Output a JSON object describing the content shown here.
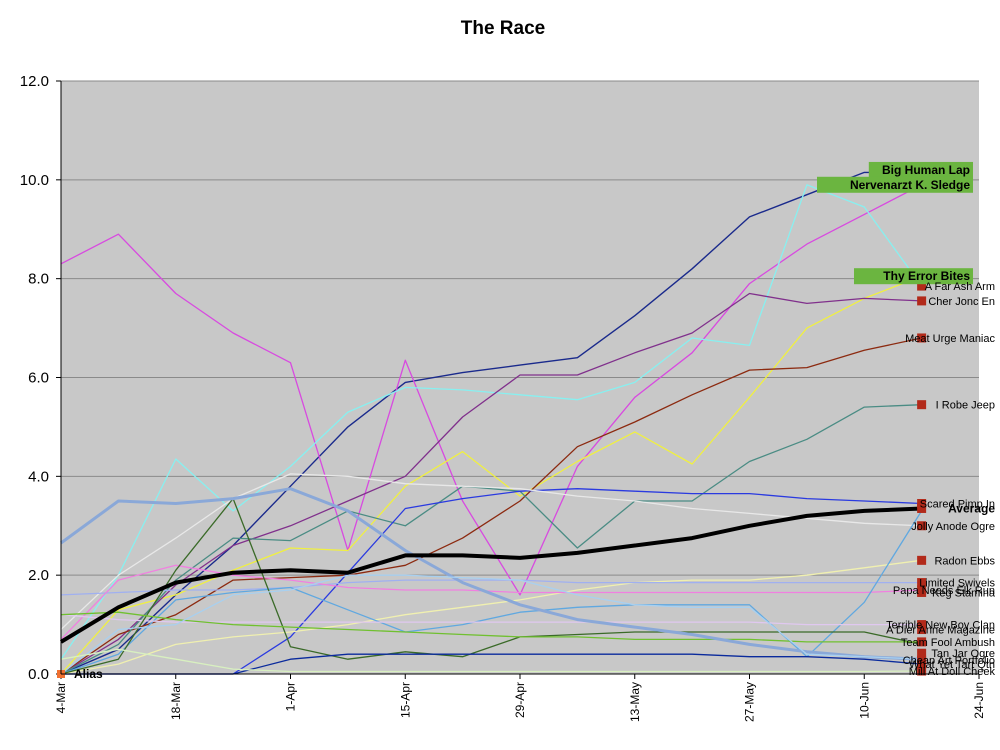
{
  "chart_data": {
    "type": "line",
    "title": "The Race",
    "xlabel": "",
    "ylabel": "",
    "ylim": [
      0,
      12
    ],
    "y_ticks": [
      "0.0",
      "2.0",
      "4.0",
      "6.0",
      "8.0",
      "10.0",
      "12.0"
    ],
    "x_ticks": [
      "4-Mar",
      "18-Mar",
      "1-Apr",
      "15-Apr",
      "29-Apr",
      "13-May",
      "27-May",
      "10-Jun",
      "24-Jun"
    ],
    "x_dates": [
      "4-Mar",
      "11-Mar",
      "18-Mar",
      "25-Mar",
      "1-Apr",
      "8-Apr",
      "15-Apr",
      "22-Apr",
      "29-Apr",
      "6-May",
      "13-May",
      "20-May",
      "27-May",
      "3-Jun",
      "10-Jun",
      "17-Jun"
    ],
    "grid": true,
    "background": "#c8c8c8",
    "series": [
      {
        "name": "Big Human Lap",
        "color": "#1a2a8c",
        "width": 1.4,
        "label_style": "badge",
        "label_y": 10.2,
        "values": [
          0,
          0.5,
          1.6,
          2.6,
          3.8,
          5.0,
          5.9,
          6.1,
          6.25,
          6.4,
          7.25,
          8.2,
          9.25,
          9.7,
          10.15,
          10.15
        ]
      },
      {
        "name": "Nervenarzt K. Sledge",
        "color": "#d84ae0",
        "width": 1.3,
        "label_style": "badge",
        "label_y": 9.9,
        "values": [
          8.3,
          8.9,
          7.7,
          6.9,
          6.3,
          2.5,
          6.35,
          3.5,
          1.6,
          4.2,
          5.6,
          6.5,
          7.9,
          8.7,
          9.3,
          9.9
        ]
      },
      {
        "name": "Thy Error Bites",
        "color": "#f0f040",
        "width": 1.3,
        "label_style": "badge",
        "label_y": 8.05,
        "values": [
          0,
          1.3,
          1.6,
          2.1,
          2.55,
          2.5,
          3.8,
          4.5,
          3.6,
          4.3,
          4.9,
          4.25,
          5.6,
          7.0,
          7.6,
          8.05
        ]
      },
      {
        "name": "A Far Ash Arm",
        "color": "#88f0f0",
        "width": 1.3,
        "label_style": "plain",
        "label_y": 7.85,
        "values": [
          0.3,
          2.0,
          4.35,
          3.3,
          4.2,
          5.3,
          5.8,
          5.75,
          5.65,
          5.55,
          5.9,
          6.8,
          6.65,
          9.9,
          9.45,
          7.85
        ]
      },
      {
        "name": "Cher Jonc En",
        "color": "#80308c",
        "width": 1.3,
        "label_style": "plain",
        "label_y": 7.55,
        "values": [
          0,
          0.7,
          1.8,
          2.6,
          3.0,
          3.5,
          4.0,
          5.2,
          6.05,
          6.05,
          6.5,
          6.9,
          7.7,
          7.5,
          7.6,
          7.55
        ]
      },
      {
        "name": "Meat Urge Maniac",
        "color": "#8c2a10",
        "width": 1.3,
        "label_style": "plain",
        "label_y": 6.8,
        "values": [
          0,
          0.8,
          1.2,
          1.9,
          1.95,
          2.0,
          2.2,
          2.75,
          3.5,
          4.6,
          5.1,
          5.65,
          6.15,
          6.2,
          6.55,
          6.8
        ]
      },
      {
        "name": "I Robe Jeep",
        "color": "#4a8c84",
        "width": 1.3,
        "label_style": "plain",
        "label_y": 5.45,
        "values": [
          0,
          0.6,
          1.9,
          2.75,
          2.7,
          3.3,
          3.0,
          3.8,
          3.7,
          2.55,
          3.5,
          3.5,
          4.3,
          4.75,
          5.4,
          5.45
        ]
      },
      {
        "name": "Scared Pimp In",
        "color": "#2a3ae0",
        "width": 1.3,
        "label_style": "plain",
        "label_y": 3.45,
        "values": [
          0,
          0,
          0,
          0,
          0.75,
          2.05,
          3.35,
          3.55,
          3.7,
          3.75,
          3.7,
          3.65,
          3.65,
          3.55,
          3.5,
          3.45
        ]
      },
      {
        "name": "Average",
        "color": "#000000",
        "width": 4,
        "label_style": "bold",
        "label_y": 3.35,
        "values": [
          0.65,
          1.35,
          1.85,
          2.05,
          2.1,
          2.05,
          2.4,
          2.4,
          2.35,
          2.45,
          2.6,
          2.75,
          3.0,
          3.2,
          3.3,
          3.35
        ]
      },
      {
        "name": "Jolly Anode Ogre",
        "color": "#e8e8e8",
        "width": 1.3,
        "label_style": "plain",
        "label_y": 3.0,
        "values": [
          0.9,
          2.0,
          2.75,
          3.55,
          4.05,
          4.0,
          3.85,
          3.8,
          3.75,
          3.6,
          3.5,
          3.35,
          3.25,
          3.15,
          3.05,
          3.0
        ]
      },
      {
        "name": "Radon Ebbs",
        "color": "#f0f0b0",
        "width": 1.3,
        "label_style": "plain",
        "label_y": 2.3,
        "values": [
          0,
          0.2,
          0.6,
          0.75,
          0.85,
          1.0,
          1.2,
          1.35,
          1.5,
          1.7,
          1.85,
          1.9,
          1.9,
          2.0,
          2.15,
          2.3
        ]
      },
      {
        "name": "Limited Swivels",
        "color": "#a0b0f0",
        "width": 1.3,
        "label_style": "plain",
        "label_y": 1.85,
        "values": [
          1.6,
          1.65,
          1.7,
          1.7,
          1.75,
          1.85,
          1.9,
          1.9,
          1.9,
          1.85,
          1.85,
          1.85,
          1.85,
          1.85,
          1.85,
          1.85
        ]
      },
      {
        "name": "Papa Needs Elk Run",
        "color": "#f080e0",
        "width": 1.3,
        "label_style": "plain",
        "label_y": 1.7,
        "values": [
          0.7,
          1.9,
          2.2,
          2.0,
          1.9,
          1.75,
          1.7,
          1.7,
          1.65,
          1.65,
          1.65,
          1.65,
          1.65,
          1.65,
          1.65,
          1.7
        ]
      },
      {
        "name": "Keg Stamina",
        "color": "#60a8e0",
        "width": 1.3,
        "label_style": "plain",
        "label_y": 1.65,
        "values": [
          0,
          0.4,
          1.5,
          1.65,
          1.75,
          1.3,
          0.85,
          1.0,
          1.25,
          1.35,
          1.4,
          1.4,
          1.4,
          0.35,
          1.45,
          3.3
        ]
      },
      {
        "name": "Terrible New Boy Clan",
        "color": "#e0c8f0",
        "width": 1.3,
        "label_style": "plain",
        "label_y": 1.0,
        "values": [
          1.2,
          1.1,
          1.05,
          1.05,
          1.05,
          1.05,
          1.05,
          1.05,
          1.05,
          1.05,
          1.05,
          1.05,
          1.05,
          1.0,
          1.0,
          1.0
        ]
      },
      {
        "name": "A Dier Anne Magazine",
        "color": "#3a6a28",
        "width": 1.3,
        "label_style": "plain",
        "label_y": 0.9,
        "values": [
          0,
          0.3,
          2.1,
          3.55,
          0.55,
          0.3,
          0.45,
          0.35,
          0.75,
          0.8,
          0.85,
          0.85,
          0.85,
          0.85,
          0.85,
          0.6
        ]
      },
      {
        "name": "Team Fool Ambush",
        "color": "#70c030",
        "width": 1.3,
        "label_style": "plain",
        "label_y": 0.65,
        "values": [
          1.2,
          1.25,
          1.1,
          1.0,
          0.95,
          0.9,
          0.85,
          0.8,
          0.75,
          0.75,
          0.7,
          0.7,
          0.7,
          0.65,
          0.65,
          0.65
        ]
      },
      {
        "name": "Tan Jar Ogre",
        "color": "#8aa8d8",
        "width": 3,
        "label_style": "plain",
        "label_y": 0.42,
        "values": [
          2.65,
          3.5,
          3.45,
          3.55,
          3.75,
          3.3,
          2.5,
          1.85,
          1.4,
          1.1,
          0.95,
          0.8,
          0.6,
          0.45,
          0.35,
          0.3
        ]
      },
      {
        "name": "Cheap Art Portfolio",
        "color": "#a8d0f0",
        "width": 1.3,
        "label_style": "plain",
        "label_y": 0.28,
        "values": [
          0,
          0.9,
          1.0,
          1.6,
          1.7,
          2.0,
          2.0,
          1.95,
          1.9,
          1.6,
          1.4,
          1.35,
          1.35,
          0.4,
          0.35,
          0.3
        ]
      },
      {
        "name": "What Yet Tart Qtn",
        "color": "#0a2a9c",
        "width": 1.3,
        "label_style": "plain",
        "label_y": 0.2,
        "values": [
          0,
          0,
          0,
          0,
          0.3,
          0.4,
          0.4,
          0.4,
          0.4,
          0.4,
          0.4,
          0.4,
          0.35,
          0.35,
          0.3,
          0.2
        ]
      },
      {
        "name": "Mill At Doll Cheek",
        "color": "#d8f0c0",
        "width": 1.3,
        "label_style": "plain",
        "label_y": 0.06,
        "values": [
          0.3,
          0.5,
          0.3,
          0.1,
          0.05,
          0.05,
          0.05,
          0.05,
          0.05,
          0.05,
          0.05,
          0.05,
          0.05,
          0.05,
          0.05,
          0.06
        ]
      },
      {
        "name": "Alias",
        "color": "#f07030",
        "width": 1.3,
        "label_style": "alias",
        "label_y": 0,
        "values": [
          0
        ]
      }
    ]
  }
}
